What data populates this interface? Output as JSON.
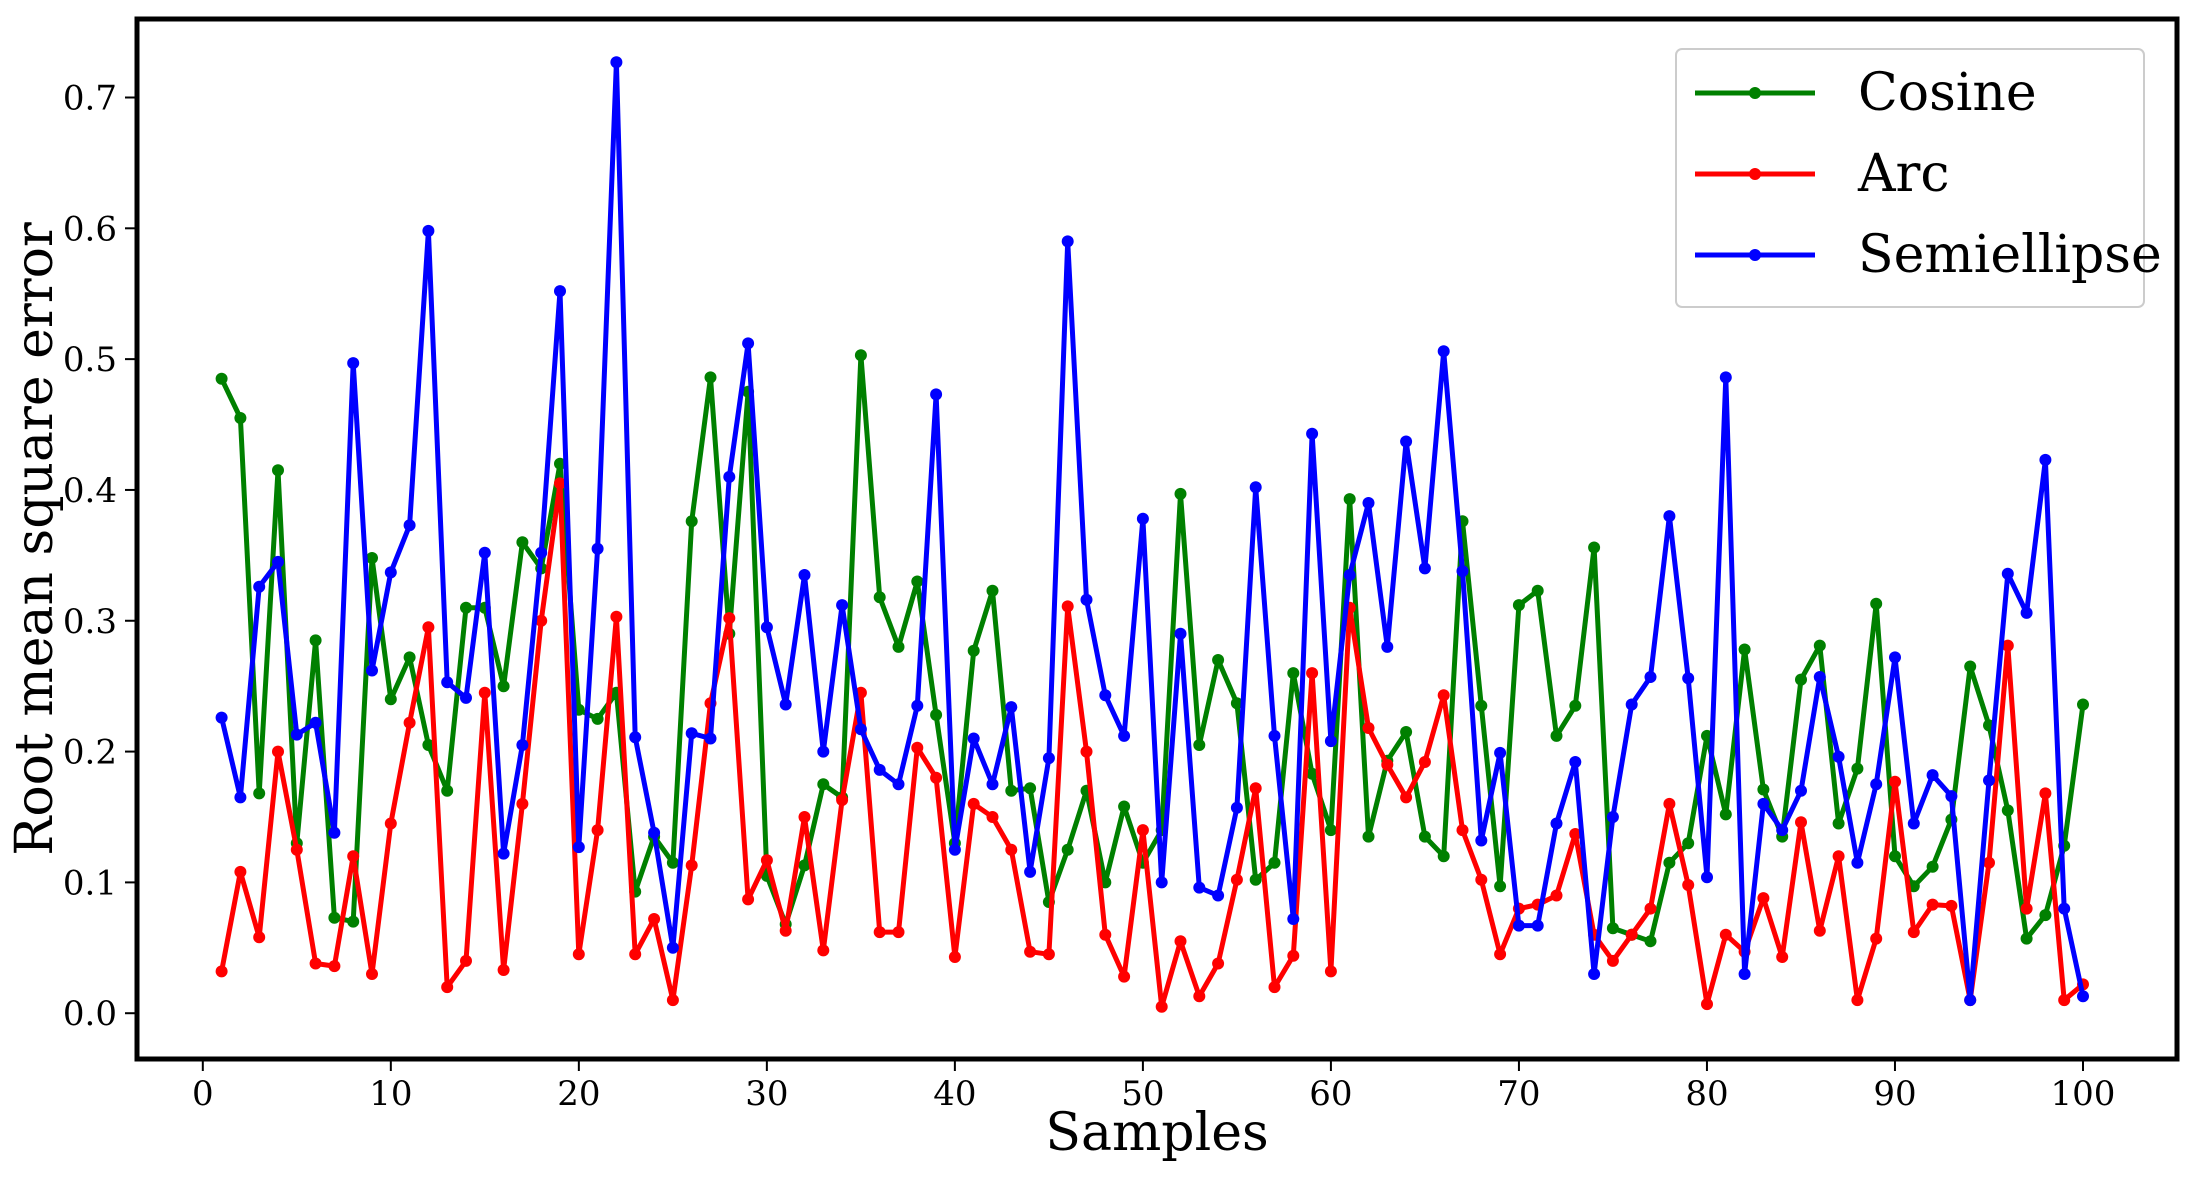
{
  "chart_data": {
    "type": "line",
    "title": "",
    "xlabel": "Samples",
    "ylabel": "Root mean square error",
    "xlim": [
      -3.5,
      105
    ],
    "ylim": [
      -0.035,
      0.76
    ],
    "xticks": [
      0,
      10,
      20,
      30,
      40,
      50,
      60,
      70,
      80,
      90,
      100
    ],
    "yticks": [
      0.0,
      0.1,
      0.2,
      0.3,
      0.4,
      0.5,
      0.6,
      0.7
    ],
    "xtick_labels": [
      "0",
      "10",
      "20",
      "30",
      "40",
      "50",
      "60",
      "70",
      "80",
      "90",
      "100"
    ],
    "ytick_labels": [
      "0.0",
      "0.1",
      "0.2",
      "0.3",
      "0.4",
      "0.5",
      "0.6",
      "0.7"
    ],
    "grid": false,
    "legend_position": "top-right",
    "x": [
      1,
      2,
      3,
      4,
      5,
      6,
      7,
      8,
      9,
      10,
      11,
      12,
      13,
      14,
      15,
      16,
      17,
      18,
      19,
      20,
      21,
      22,
      23,
      24,
      25,
      26,
      27,
      28,
      29,
      30,
      31,
      32,
      33,
      34,
      35,
      36,
      37,
      38,
      39,
      40,
      41,
      42,
      43,
      44,
      45,
      46,
      47,
      48,
      49,
      50,
      51,
      52,
      53,
      54,
      55,
      56,
      57,
      58,
      59,
      60,
      61,
      62,
      63,
      64,
      65,
      66,
      67,
      68,
      69,
      70,
      71,
      72,
      73,
      74,
      75,
      76,
      77,
      78,
      79,
      80,
      81,
      82,
      83,
      84,
      85,
      86,
      87,
      88,
      89,
      90,
      91,
      92,
      93,
      94,
      95,
      96,
      97,
      98,
      99,
      100
    ],
    "series": [
      {
        "name": "Cosine",
        "color": "#008000",
        "values": [
          0.485,
          0.455,
          0.168,
          0.415,
          0.13,
          0.285,
          0.073,
          0.07,
          0.348,
          0.24,
          0.272,
          0.205,
          0.17,
          0.31,
          0.31,
          0.25,
          0.36,
          0.34,
          0.42,
          0.232,
          0.225,
          0.245,
          0.093,
          0.135,
          0.115,
          0.376,
          0.486,
          0.29,
          0.475,
          0.105,
          0.068,
          0.113,
          0.175,
          0.165,
          0.503,
          0.318,
          0.28,
          0.33,
          0.228,
          0.13,
          0.277,
          0.323,
          0.17,
          0.172,
          0.085,
          0.125,
          0.17,
          0.1,
          0.158,
          0.115,
          0.14,
          0.397,
          0.205,
          0.27,
          0.237,
          0.102,
          0.115,
          0.26,
          0.183,
          0.14,
          0.393,
          0.135,
          0.193,
          0.215,
          0.135,
          0.12,
          0.376,
          0.235,
          0.097,
          0.312,
          0.323,
          0.212,
          0.235,
          0.356,
          0.065,
          0.06,
          0.055,
          0.115,
          0.13,
          0.212,
          0.152,
          0.278,
          0.171,
          0.135,
          0.255,
          0.281,
          0.145,
          0.187,
          0.313,
          0.12,
          0.097,
          0.112,
          0.148,
          0.265,
          0.22,
          0.155,
          0.057,
          0.075,
          0.128,
          0.236
        ]
      },
      {
        "name": "Arc",
        "color": "#ff0000",
        "values": [
          0.032,
          0.108,
          0.058,
          0.2,
          0.125,
          0.038,
          0.036,
          0.12,
          0.03,
          0.145,
          0.222,
          0.295,
          0.02,
          0.04,
          0.245,
          0.033,
          0.16,
          0.3,
          0.405,
          0.045,
          0.14,
          0.303,
          0.045,
          0.072,
          0.01,
          0.113,
          0.237,
          0.302,
          0.087,
          0.117,
          0.063,
          0.15,
          0.048,
          0.163,
          0.245,
          0.062,
          0.062,
          0.203,
          0.18,
          0.043,
          0.16,
          0.15,
          0.125,
          0.047,
          0.045,
          0.311,
          0.2,
          0.06,
          0.028,
          0.14,
          0.005,
          0.055,
          0.013,
          0.038,
          0.102,
          0.172,
          0.02,
          0.044,
          0.26,
          0.032,
          0.31,
          0.218,
          0.19,
          0.165,
          0.192,
          0.243,
          0.14,
          0.102,
          0.045,
          0.08,
          0.083,
          0.09,
          0.137,
          0.06,
          0.04,
          0.06,
          0.08,
          0.16,
          0.098,
          0.007,
          0.06,
          0.047,
          0.088,
          0.043,
          0.146,
          0.063,
          0.12,
          0.01,
          0.057,
          0.177,
          0.062,
          0.083,
          0.082,
          0.01,
          0.115,
          0.281,
          0.08,
          0.168,
          0.01,
          0.022
        ]
      },
      {
        "name": "Semiellipse",
        "color": "#0000ff",
        "values": [
          0.226,
          0.165,
          0.326,
          0.345,
          0.213,
          0.222,
          0.138,
          0.497,
          0.262,
          0.337,
          0.373,
          0.598,
          0.253,
          0.241,
          0.352,
          0.122,
          0.205,
          0.352,
          0.552,
          0.127,
          0.355,
          0.727,
          0.211,
          0.138,
          0.05,
          0.214,
          0.21,
          0.41,
          0.512,
          0.295,
          0.236,
          0.335,
          0.2,
          0.312,
          0.217,
          0.186,
          0.175,
          0.235,
          0.473,
          0.125,
          0.21,
          0.175,
          0.234,
          0.108,
          0.195,
          0.59,
          0.316,
          0.243,
          0.212,
          0.378,
          0.1,
          0.29,
          0.096,
          0.09,
          0.157,
          0.402,
          0.212,
          0.072,
          0.443,
          0.208,
          0.335,
          0.39,
          0.28,
          0.437,
          0.34,
          0.506,
          0.338,
          0.132,
          0.199,
          0.067,
          0.067,
          0.145,
          0.192,
          0.03,
          0.15,
          0.236,
          0.257,
          0.38,
          0.256,
          0.104,
          0.486,
          0.03,
          0.16,
          0.14,
          0.17,
          0.257,
          0.196,
          0.115,
          0.175,
          0.272,
          0.145,
          0.182,
          0.166,
          0.01,
          0.178,
          0.336,
          0.306,
          0.423,
          0.08,
          0.013
        ]
      }
    ]
  }
}
